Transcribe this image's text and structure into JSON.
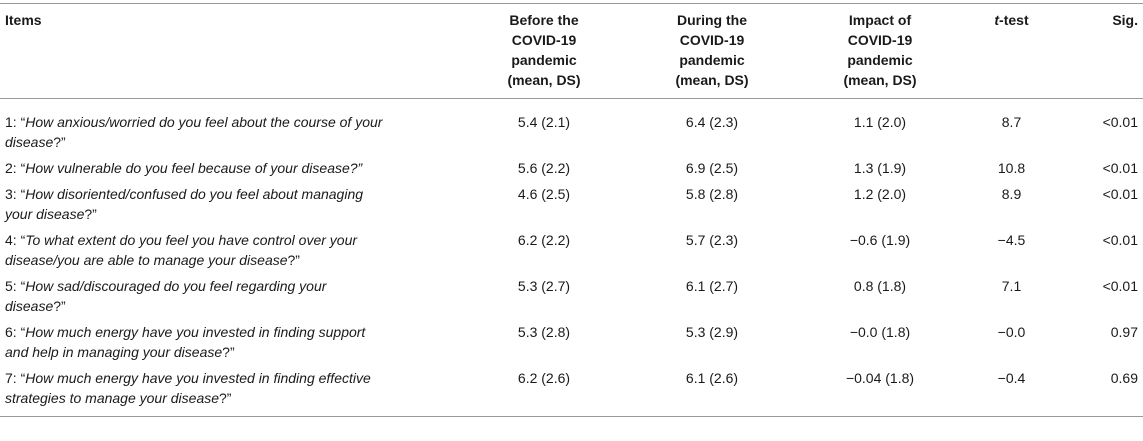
{
  "headers": {
    "items": "Items",
    "before": [
      "Before the",
      "COVID-19",
      "pandemic",
      "(mean, DS)"
    ],
    "during": [
      "During the",
      "COVID-19",
      "pandemic",
      "(mean, DS)"
    ],
    "impact": [
      "Impact of",
      "COVID-19",
      "pandemic",
      "(mean, DS)"
    ],
    "ttest_t": "t",
    "ttest_rest": "-test",
    "sig": "Sig."
  },
  "rows": [
    {
      "num": "1: “",
      "q1": "How anxious/worried do you feel about the course of your",
      "q2": "disease",
      "close": "?”",
      "before": "5.4 (2.1)",
      "during": "6.4 (2.3)",
      "impact": "1.1 (2.0)",
      "t": "8.7",
      "sig": "<0.01"
    },
    {
      "num": "2: “",
      "q1": "How vulnerable do you feel because of your disease?”",
      "q2": "",
      "close": "",
      "before": "5.6 (2.2)",
      "during": "6.9 (2.5)",
      "impact": "1.3 (1.9)",
      "t": "10.8",
      "sig": "<0.01"
    },
    {
      "num": "3: “",
      "q1": "How disoriented/confused do you feel about managing",
      "q2": "your disease",
      "close": "?”",
      "before": "4.6 (2.5)",
      "during": "5.8 (2.8)",
      "impact": "1.2 (2.0)",
      "t": "8.9",
      "sig": "<0.01"
    },
    {
      "num": "4: “",
      "q1": "To what extent do you feel you have control over your",
      "q2": "disease/you are able to manage your disease",
      "close": "?”",
      "before": "6.2 (2.2)",
      "during": "5.7 (2.3)",
      "impact": "−0.6 (1.9)",
      "t": "−4.5",
      "sig": "<0.01"
    },
    {
      "num": "5: “",
      "q1": "How sad/discouraged do you feel regarding your",
      "q2": "disease",
      "close": "?”",
      "before": "5.3 (2.7)",
      "during": "6.1 (2.7)",
      "impact": "0.8 (1.8)",
      "t": "7.1",
      "sig": "<0.01"
    },
    {
      "num": "6: “",
      "q1": "How much energy have you invested in finding support",
      "q2": "and help in managing your disease",
      "close": "?”",
      "before": "5.3 (2.8)",
      "during": "5.3 (2.9)",
      "impact": "−0.0 (1.8)",
      "t": "−0.0",
      "sig": "0.97"
    },
    {
      "num": "7: “",
      "q1": "How much energy have you invested in finding effective",
      "q2": "strategies to manage your disease",
      "close": "?”",
      "before": "6.2 (2.6)",
      "during": "6.1 (2.6)",
      "impact": "−0.04 (1.8)",
      "t": "−0.4",
      "sig": "0.69"
    }
  ]
}
